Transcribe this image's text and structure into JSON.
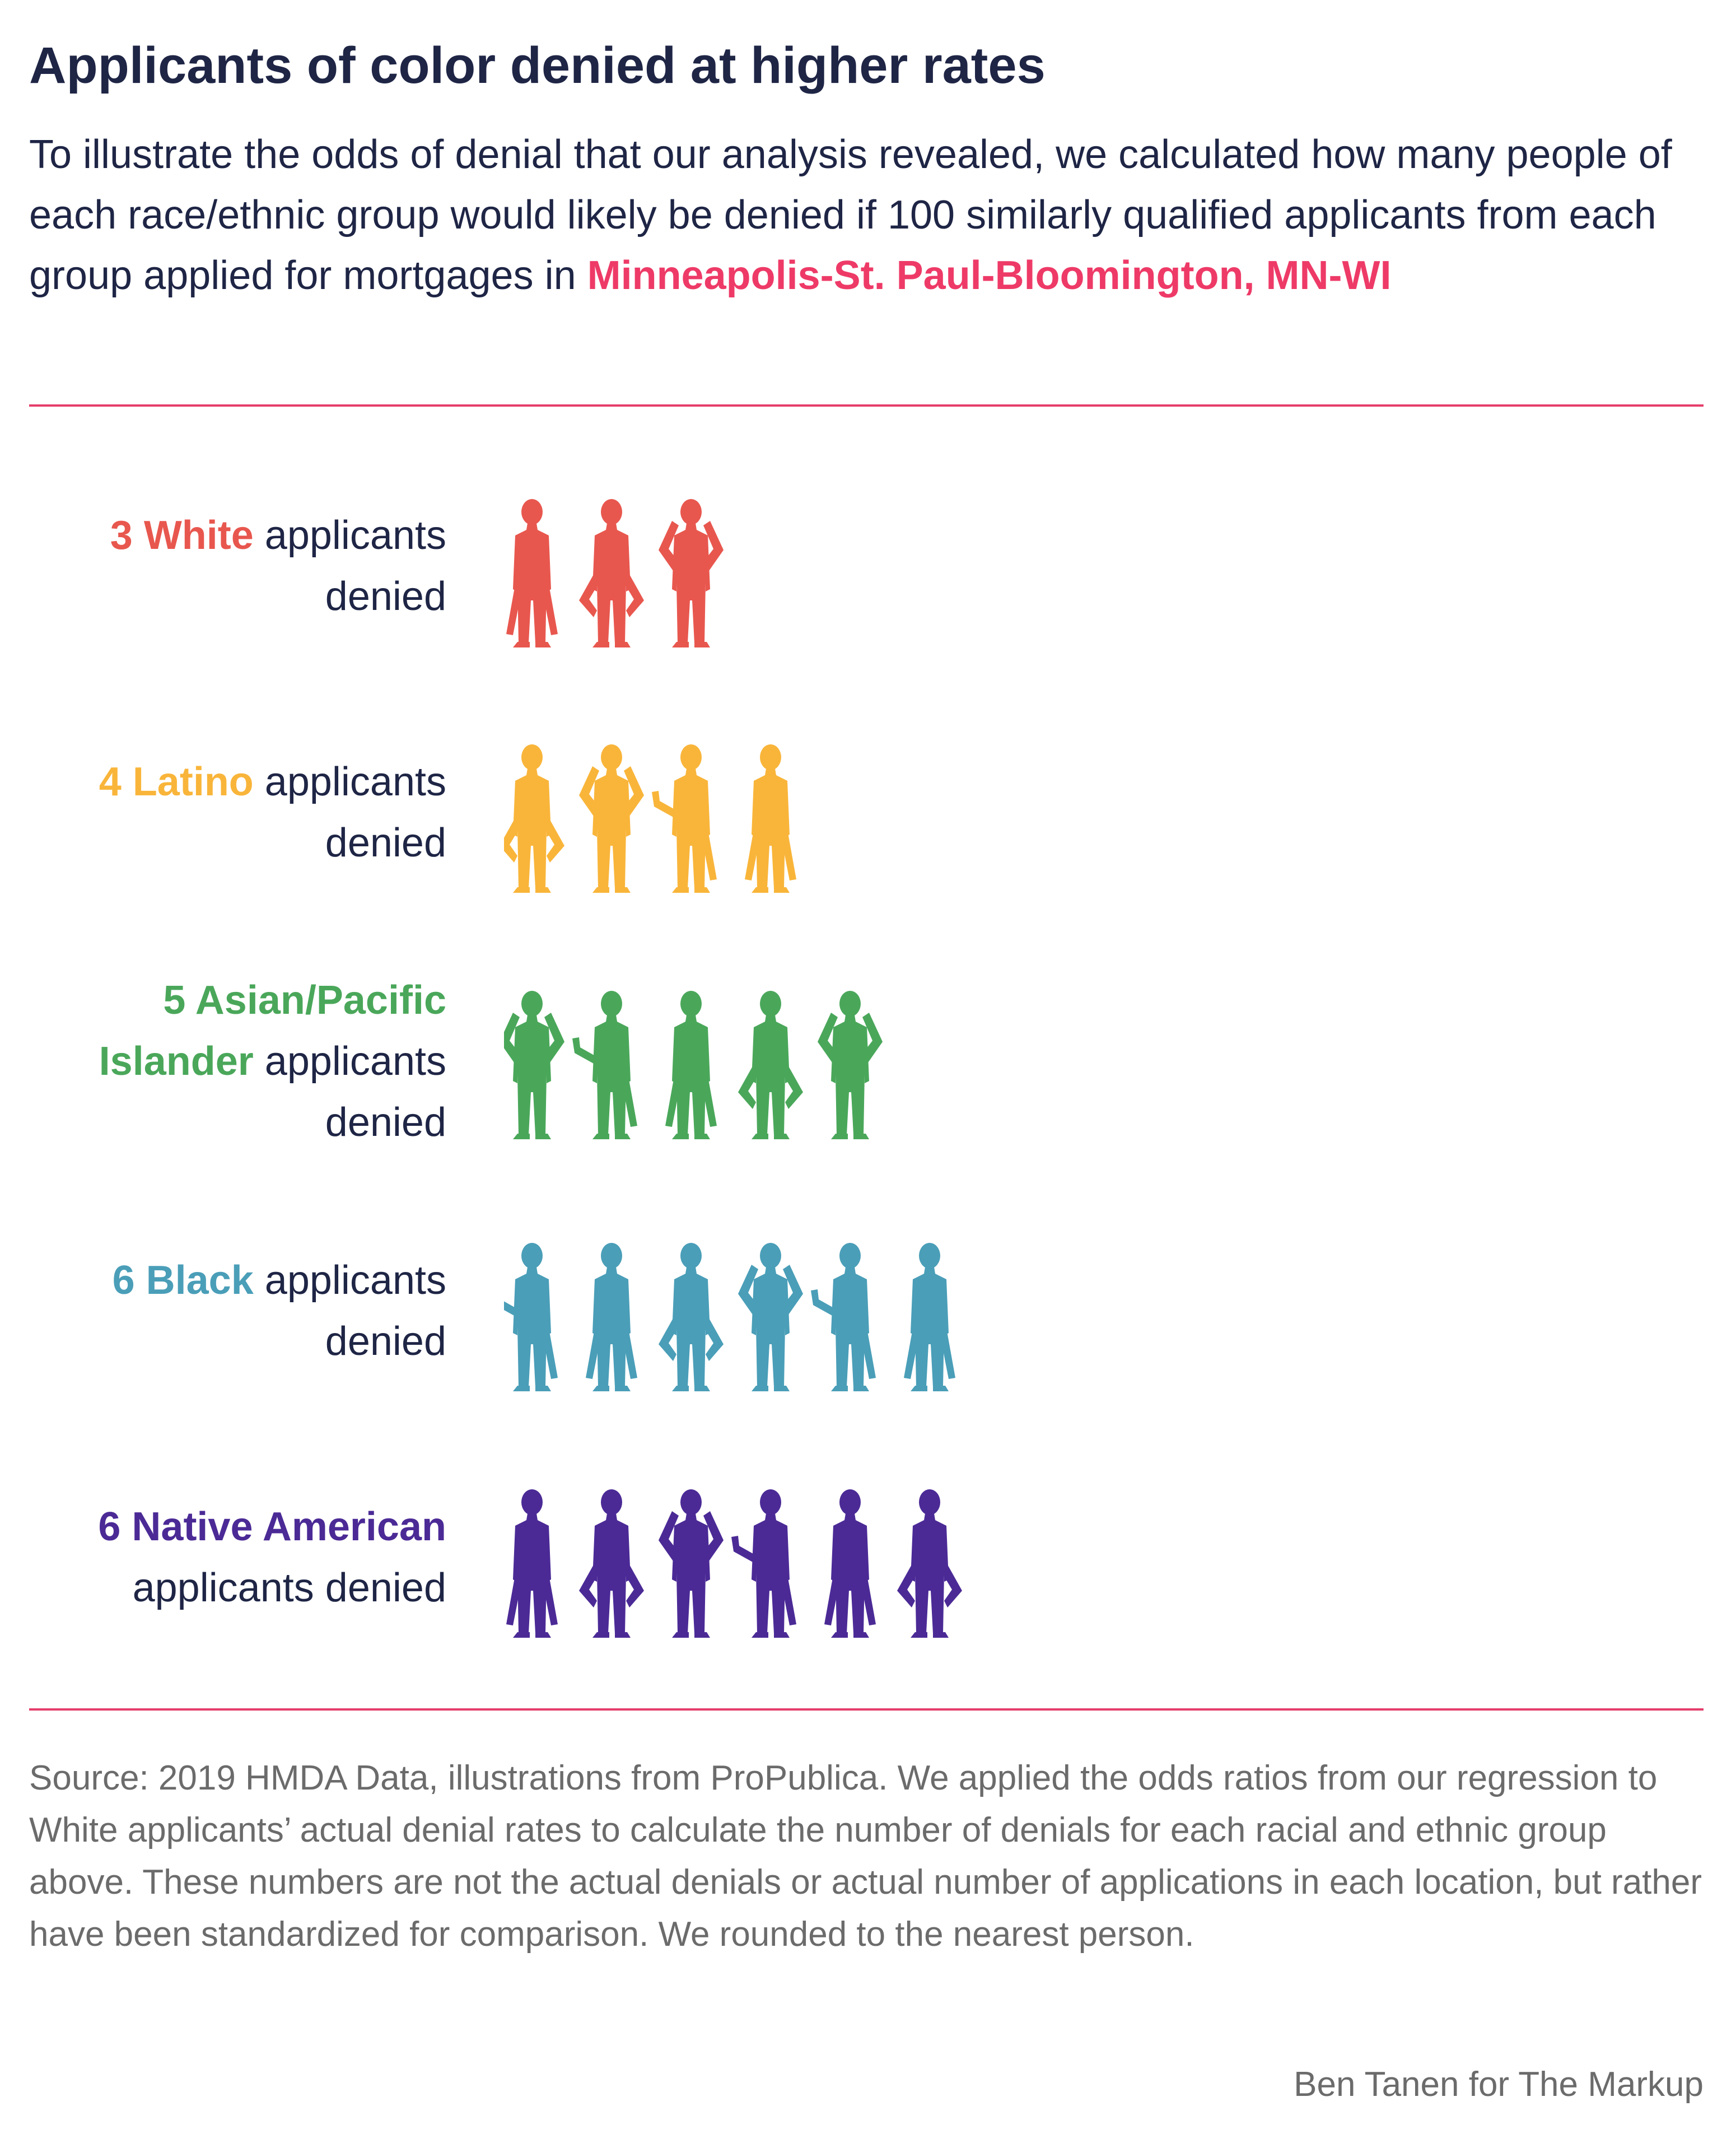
{
  "header": {
    "title": "Applicants of color denied at higher rates",
    "subtitle_text": "To illustrate the odds of denial that our analysis revealed, we calculated how many people of each race/ethnic group would likely be denied if 100 similarly qualified applicants from each group applied for mortgages in ",
    "location": "Minneapolis-St. Paul-Bloomington, MN-WI"
  },
  "chart_data": {
    "type": "pictogram",
    "unit": "applicants denied per 100 similarly qualified applicants",
    "series": [
      {
        "count": 3,
        "group": "White",
        "suffix": "applicants denied",
        "color": "#e8574e"
      },
      {
        "count": 4,
        "group": "Latino",
        "suffix": "applicants denied",
        "color": "#f9b53a"
      },
      {
        "count": 5,
        "group": "Asian/Pacific Islander",
        "suffix": "applicants denied",
        "color": "#4aa75a"
      },
      {
        "count": 6,
        "group": "Black",
        "suffix": "applicants denied",
        "color": "#4a9eb8"
      },
      {
        "count": 6,
        "group": "Native American",
        "suffix": "applicants denied",
        "color": "#4b2a96"
      }
    ]
  },
  "footer": {
    "source": "Source: 2019 HMDA Data, illustrations from ProPublica. We applied the odds ratios from our regression to White applicants’ actual denial rates to calculate the number of denials for each racial and ethnic group above. These numbers are not the actual denials or actual number of applications in each location, but rather have been standardized for comparison. We rounded to the nearest person.",
    "credit": "Ben Tanen for The Markup"
  }
}
